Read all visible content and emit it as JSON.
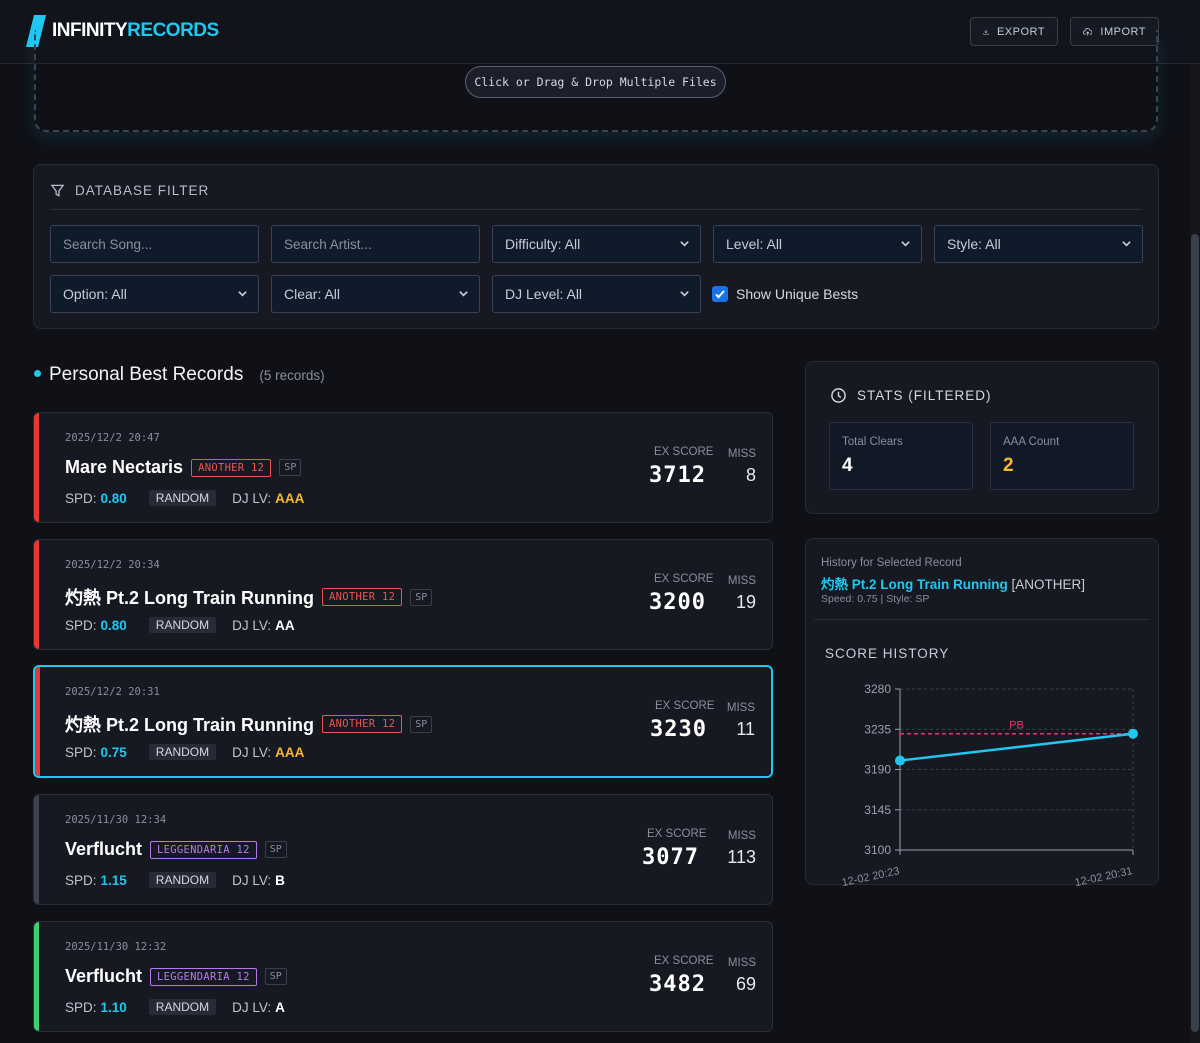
{
  "header": {
    "logo_main": "INFINITY",
    "logo_accent": "RECORDS",
    "export_label": "EXPORT",
    "import_label": "IMPORT"
  },
  "dropzone": {
    "button_label": "Click or Drag & Drop Multiple Files"
  },
  "filter": {
    "title": "DATABASE FILTER",
    "search_song_placeholder": "Search Song...",
    "search_artist_placeholder": "Search Artist...",
    "difficulty": "Difficulty: All",
    "level": "Level: All",
    "style": "Style: All",
    "option": "Option: All",
    "clear": "Clear: All",
    "dj_level": "DJ Level: All",
    "unique_bests_label": "Show Unique Bests",
    "unique_bests_checked": true
  },
  "records": {
    "title": "Personal Best Records",
    "count": "(5 records)",
    "ex_score_label": "EX SCORE",
    "miss_label": "MISS",
    "spd_label": "SPD:",
    "dj_lv_label": "DJ LV:",
    "items": [
      {
        "date": "2025/12/2 20:47",
        "song": "Mare Nectaris",
        "difficulty": "ANOTHER 12",
        "style": "SP",
        "spd": "0.80",
        "option": "RANDOM",
        "dj_lv": "AAA",
        "ex_score": "3712",
        "miss": "8",
        "bar_color": "#e53935",
        "diff_color": "#ef5350",
        "dj_color": "#f5b82e",
        "selected": false
      },
      {
        "date": "2025/12/2 20:34",
        "song": "灼熱 Pt.2 Long Train Running",
        "difficulty": "ANOTHER 12",
        "style": "SP",
        "spd": "0.80",
        "option": "RANDOM",
        "dj_lv": "AA",
        "ex_score": "3200",
        "miss": "19",
        "bar_color": "#e53935",
        "diff_color": "#ef5350",
        "dj_color": "#ffffff",
        "selected": false
      },
      {
        "date": "2025/12/2 20:31",
        "song": "灼熱 Pt.2 Long Train Running",
        "difficulty": "ANOTHER 12",
        "style": "SP",
        "spd": "0.75",
        "option": "RANDOM",
        "dj_lv": "AAA",
        "ex_score": "3230",
        "miss": "11",
        "bar_color": "#e53935",
        "diff_color": "#ef5350",
        "dj_color": "#f5b82e",
        "selected": true
      },
      {
        "date": "2025/11/30 12:34",
        "song": "Verflucht",
        "difficulty": "LEGGENDARIA 12",
        "style": "SP",
        "spd": "1.15",
        "option": "RANDOM",
        "dj_lv": "B",
        "ex_score": "3077",
        "miss": "113",
        "bar_color": "#3d4350",
        "diff_color": "#b57bee",
        "dj_color": "#ffffff",
        "selected": false
      },
      {
        "date": "2025/11/30 12:32",
        "song": "Verflucht",
        "difficulty": "LEGGENDARIA 12",
        "style": "SP",
        "spd": "1.10",
        "option": "RANDOM",
        "dj_lv": "A",
        "ex_score": "3482",
        "miss": "69",
        "bar_color": "#3ecf6e",
        "diff_color": "#b57bee",
        "dj_color": "#ffffff",
        "selected": false
      }
    ]
  },
  "stats": {
    "title": "STATS (FILTERED)",
    "total_clears_label": "Total Clears",
    "total_clears": "4",
    "aaa_count_label": "AAA Count",
    "aaa_count": "2"
  },
  "history": {
    "heading": "History for Selected Record",
    "song": "灼熱 Pt.2 Long Train Running",
    "difficulty": "[ANOTHER]",
    "speed_style": "Speed: 0.75 | Style: SP",
    "chart_title": "SCORE HISTORY"
  },
  "chart_data": {
    "type": "line",
    "x": [
      "12-02 20:23",
      "12-02 20:31"
    ],
    "series": [
      {
        "values": [
          3200,
          3230
        ]
      }
    ],
    "y_ticks": [
      3280,
      3235,
      3190,
      3145,
      3100
    ],
    "ylim": [
      3100,
      3280
    ],
    "reference_line": {
      "label": "PB",
      "value": 3230
    },
    "grid": true
  },
  "colors": {
    "accent": "#1ec8f0",
    "pb_line": "#e8336d"
  }
}
